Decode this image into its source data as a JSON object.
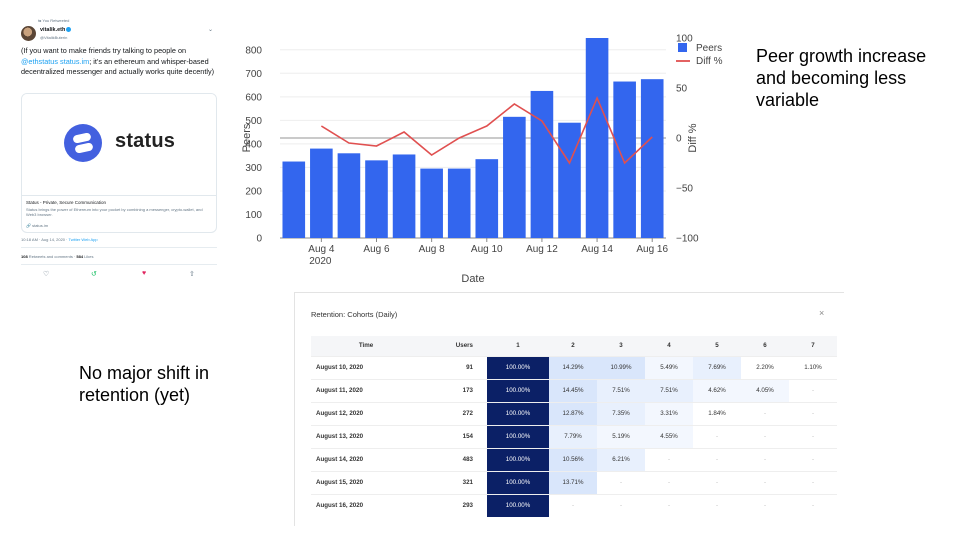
{
  "tweet": {
    "retweeted_by": "You Retweeted",
    "display_name": "vitalik.eth",
    "handle": "@VitalikButerin",
    "text_before": "(If you want to make friends try talking to people on ",
    "text_link": "@ethstatus status.im",
    "text_after": "; it's an ethereum and whisper-based decentralized messenger and actually works quite decently)",
    "card": {
      "brand": "status",
      "title": "Status - Private, Secure Communication",
      "description": "Status brings the power of Ethereum into your pocket by combining a messenger, crypto-wallet, and Web3 browser.",
      "url": "🔗 status.im"
    },
    "timestamp": "10:18 AM · Aug 14, 2020 · ",
    "source": "Twitter Web App",
    "retweets_count": "108",
    "retweets_label": " Retweets and comments · ",
    "likes_count": "584",
    "likes_label": " Likes",
    "icons": {
      "reply": "♡",
      "retweet": "↺",
      "like": "♥",
      "share": "⇧"
    },
    "colors": {
      "link": "#1da1f2",
      "retweet": "#17bf63",
      "like": "#e0245e"
    }
  },
  "chart_data": {
    "type": "bar",
    "categories": [
      "Aug 3",
      "Aug 4",
      "Aug 5",
      "Aug 6",
      "Aug 7",
      "Aug 8",
      "Aug 9",
      "Aug 10",
      "Aug 11",
      "Aug 12",
      "Aug 13",
      "Aug 14",
      "Aug 15",
      "Aug 16"
    ],
    "series": [
      {
        "name": "Peers",
        "kind": "bar",
        "axis": "left",
        "color": "#3366ee",
        "values": [
          325,
          380,
          360,
          330,
          355,
          295,
          295,
          335,
          515,
          625,
          490,
          850,
          665,
          675
        ]
      },
      {
        "name": "Diff %",
        "kind": "line",
        "axis": "right",
        "color": "#e05050",
        "values": [
          null,
          12,
          -5,
          -8,
          6,
          -17,
          0,
          12,
          34,
          17,
          -25,
          40,
          -25,
          1
        ]
      }
    ],
    "xticks": [
      "Aug 4",
      "Aug 6",
      "Aug 8",
      "Aug 10",
      "Aug 12",
      "Aug 14",
      "Aug 16"
    ],
    "xtick_year": "2020",
    "yticks_left": [
      "0",
      "100",
      "200",
      "300",
      "400",
      "500",
      "600",
      "700",
      "800"
    ],
    "yticks_right": [
      "−100",
      "−50",
      "0",
      "50",
      "100"
    ],
    "xlabel": "Date",
    "ylabel": "Peers",
    "y2label": "Diff %",
    "ylim": [
      0,
      850
    ],
    "y2lim": [
      -100,
      100
    ],
    "legend": "top-right"
  },
  "notes": {
    "top": "Peer growth increase and becoming less variable",
    "bottom": "No major shift in retention (yet)"
  },
  "retention": {
    "title": "Retention: Cohorts (Daily)",
    "close": "×",
    "headers": [
      "Time",
      "Users",
      "1",
      "2",
      "3",
      "4",
      "5",
      "6",
      "7"
    ],
    "rows": [
      {
        "time": "August 10, 2020",
        "users": "91",
        "cells": [
          "100.00%",
          "14.29%",
          "10.99%",
          "5.49%",
          "7.69%",
          "2.20%",
          "1.10%"
        ]
      },
      {
        "time": "August 11, 2020",
        "users": "173",
        "cells": [
          "100.00%",
          "14.45%",
          "7.51%",
          "7.51%",
          "4.62%",
          "4.05%",
          "-"
        ]
      },
      {
        "time": "August 12, 2020",
        "users": "272",
        "cells": [
          "100.00%",
          "12.87%",
          "7.35%",
          "3.31%",
          "1.84%",
          "-",
          "-"
        ]
      },
      {
        "time": "August 13, 2020",
        "users": "154",
        "cells": [
          "100.00%",
          "7.79%",
          "5.19%",
          "4.55%",
          "-",
          "-",
          "-"
        ]
      },
      {
        "time": "August 14, 2020",
        "users": "483",
        "cells": [
          "100.00%",
          "10.56%",
          "6.21%",
          "-",
          "-",
          "-",
          "-"
        ]
      },
      {
        "time": "August 15, 2020",
        "users": "321",
        "cells": [
          "100.00%",
          "13.71%",
          "-",
          "-",
          "-",
          "-",
          "-"
        ]
      },
      {
        "time": "August 16, 2020",
        "users": "293",
        "cells": [
          "100.00%",
          "-",
          "-",
          "-",
          "-",
          "-",
          "-"
        ]
      }
    ]
  }
}
